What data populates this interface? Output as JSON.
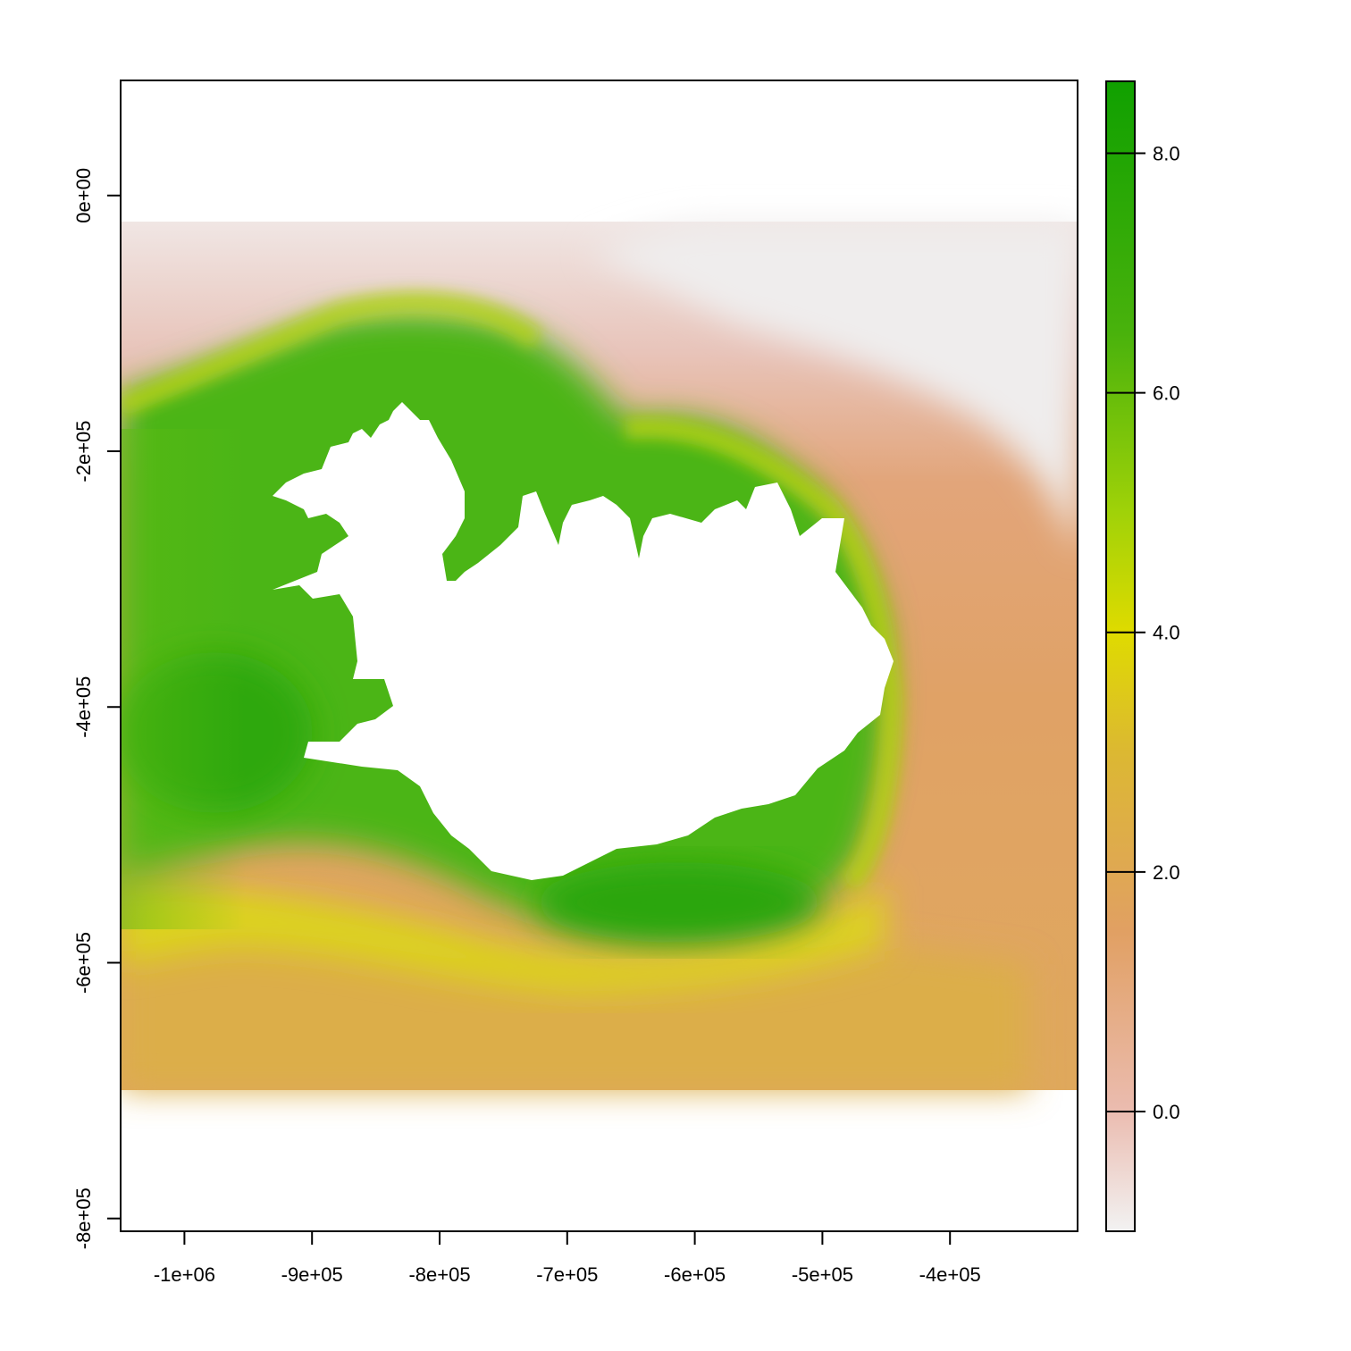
{
  "chart_data": {
    "type": "heatmap",
    "title": "",
    "xlabel": "",
    "ylabel": "",
    "xlim": [
      -1050000,
      -300000
    ],
    "ylim": [
      -810000,
      90000
    ],
    "data_extent": {
      "x": [
        -1050000,
        -300000
      ],
      "y": [
        -700000,
        -20000
      ]
    },
    "x_ticks": [
      {
        "value": -1000000,
        "label": "-1e+06"
      },
      {
        "value": -900000,
        "label": "-9e+05"
      },
      {
        "value": -800000,
        "label": "-8e+05"
      },
      {
        "value": -700000,
        "label": "-7e+05"
      },
      {
        "value": -600000,
        "label": "-6e+05"
      },
      {
        "value": -500000,
        "label": "-5e+05"
      },
      {
        "value": -400000,
        "label": "-4e+05"
      }
    ],
    "y_ticks": [
      {
        "value": 0,
        "label": "0e+00"
      },
      {
        "value": -200000,
        "label": "-2e+05"
      },
      {
        "value": -400000,
        "label": "-4e+05"
      },
      {
        "value": -600000,
        "label": "-6e+05"
      },
      {
        "value": -800000,
        "label": "-8e+05"
      }
    ],
    "legend": {
      "placement": "right",
      "range": [
        -1.0,
        8.6
      ],
      "ticks": [
        {
          "value": 0.0,
          "label": "0.0"
        },
        {
          "value": 2.0,
          "label": "2.0"
        },
        {
          "value": 4.0,
          "label": "4.0"
        },
        {
          "value": 6.0,
          "label": "6.0"
        },
        {
          "value": 8.0,
          "label": "8.0"
        }
      ],
      "color_stops": [
        {
          "value": -1.0,
          "color": "#f2f2f2"
        },
        {
          "value": 0.0,
          "color": "#ebbcb0"
        },
        {
          "value": 1.5,
          "color": "#e1a063"
        },
        {
          "value": 3.0,
          "color": "#dcb832"
        },
        {
          "value": 4.0,
          "color": "#dfdb00"
        },
        {
          "value": 5.0,
          "color": "#a0d208"
        },
        {
          "value": 6.5,
          "color": "#49b20c"
        },
        {
          "value": 8.6,
          "color": "#10a000"
        }
      ]
    },
    "no_data_color": "#ffffff"
  }
}
